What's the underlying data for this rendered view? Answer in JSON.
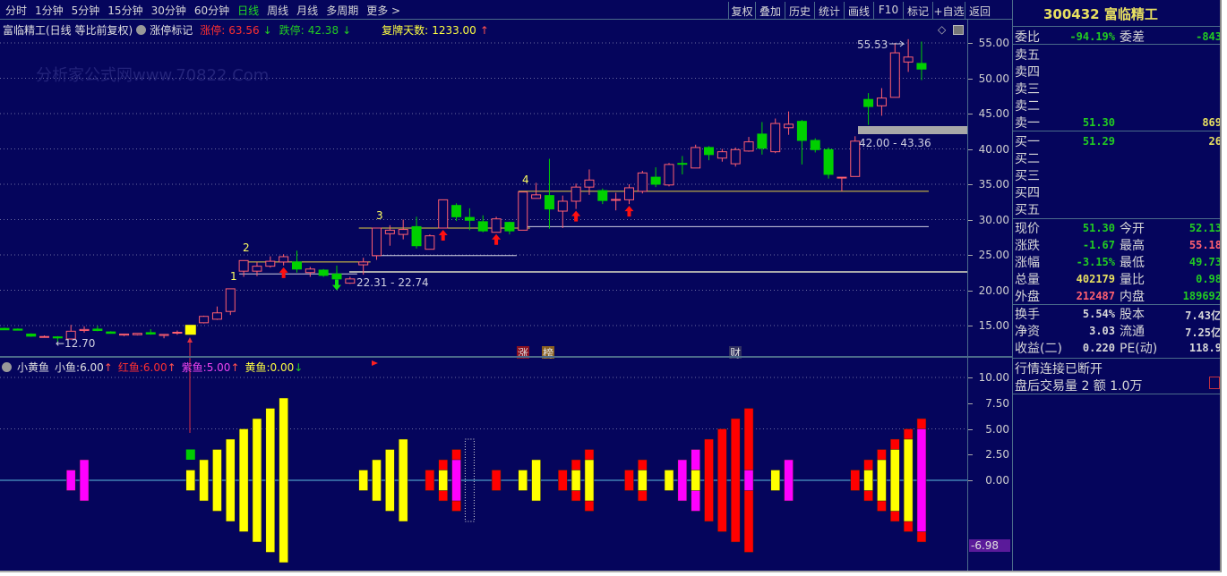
{
  "toolbar": {
    "periods": [
      "分时",
      "1分钟",
      "5分钟",
      "15分钟",
      "30分钟",
      "60分钟",
      "日线",
      "周线",
      "月线",
      "多周期",
      "更多 >"
    ],
    "active_period": "日线",
    "actions": [
      "复权",
      "叠加",
      "历史",
      "统计",
      "画线",
      "F10",
      "标记",
      "+自选",
      "返回"
    ]
  },
  "price_header": {
    "title": "富临精工(日线 等比前复权)",
    "mark_label": "涨停标记",
    "limit_up_label": "涨停:",
    "limit_up": "63.56",
    "limit_down_label": "跌停:",
    "limit_down": "42.38",
    "resume_label": "复牌天数:",
    "resume_days": "1233.00"
  },
  "indicator_header": {
    "name": "小黄鱼",
    "small_label": "小鱼:",
    "small": "6.00",
    "red_label": "红鱼:",
    "red": "6.00",
    "purple_label": "紫鱼:",
    "purple": "5.00",
    "yellow_label": "黄鱼:",
    "yellow": "0.00"
  },
  "price_axis": [
    "55.00",
    "50.00",
    "45.00",
    "40.00",
    "35.00",
    "30.00",
    "25.00",
    "20.00",
    "15.00"
  ],
  "indicator_axis": [
    "10.00",
    "7.50",
    "5.00",
    "2.50",
    "0.00"
  ],
  "indicator_cursor_value": "-6.98",
  "annotations": {
    "low_label": "←12.70",
    "zone1": "22.31 - 22.74",
    "zone2": "42.00 - 43.36",
    "high_label": "55.53",
    "wave_labels": [
      "1",
      "2",
      "3",
      "4"
    ],
    "badges": [
      "涨",
      "榜",
      "财"
    ]
  },
  "watermark": "分析家公式网www.70822.Com",
  "colors": {
    "bg": "#05055c",
    "up": "#ff5f6f",
    "down": "#00d000",
    "yellow": "#ffff00",
    "red": "#ff0000",
    "magenta": "#ff00ff",
    "green": "#00cc00",
    "grid": "#4b6b8a"
  },
  "chart_data": {
    "type": "candlestick",
    "ylim": [
      12,
      56
    ],
    "highlight_index": 14,
    "ohlc": [
      [
        14.6,
        14.7,
        14.4,
        14.4
      ],
      [
        14.5,
        14.6,
        14.3,
        14.35
      ],
      [
        13.8,
        13.9,
        13.4,
        13.5
      ],
      [
        13.4,
        13.6,
        13.3,
        13.45
      ],
      [
        13.4,
        13.5,
        12.7,
        13.25
      ],
      [
        13.1,
        15.1,
        13.0,
        14.2
      ],
      [
        14.3,
        14.9,
        14.0,
        14.45
      ],
      [
        14.5,
        15.0,
        14.2,
        14.3
      ],
      [
        14.1,
        14.2,
        13.9,
        13.9
      ],
      [
        13.65,
        13.8,
        13.5,
        13.8
      ],
      [
        13.7,
        13.9,
        13.6,
        13.9
      ],
      [
        14.0,
        14.5,
        13.7,
        13.8
      ],
      [
        13.6,
        13.8,
        13.2,
        13.75
      ],
      [
        13.95,
        14.3,
        13.7,
        14.05
      ],
      [
        13.7,
        15.1,
        13.7,
        15.1
      ],
      [
        15.4,
        16.4,
        15.3,
        16.3
      ],
      [
        15.9,
        17.7,
        15.8,
        16.8
      ],
      [
        17.0,
        20.2,
        16.5,
        20.2
      ],
      [
        22.7,
        24.2,
        21.9,
        24.2
      ],
      [
        22.7,
        24.0,
        22.0,
        23.4
      ],
      [
        23.4,
        24.8,
        23.2,
        24.1
      ],
      [
        24.0,
        25.1,
        23.5,
        24.75
      ],
      [
        24.0,
        25.6,
        22.5,
        23.0
      ],
      [
        22.5,
        23.3,
        21.9,
        23.0
      ],
      [
        22.85,
        23.0,
        21.9,
        22.1
      ],
      [
        22.3,
        23.5,
        21.5,
        21.6
      ],
      [
        21.0,
        21.9,
        20.9,
        21.6
      ],
      [
        23.6,
        24.6,
        22.2,
        24.0
      ],
      [
        24.9,
        28.8,
        24.3,
        28.8
      ],
      [
        28.0,
        29.2,
        26.3,
        28.5
      ],
      [
        27.9,
        30.0,
        27.2,
        28.6
      ],
      [
        29.0,
        30.4,
        25.9,
        26.3
      ],
      [
        25.8,
        27.9,
        25.8,
        27.7
      ],
      [
        28.8,
        32.8,
        28.8,
        32.8
      ],
      [
        32.0,
        32.3,
        29.8,
        30.4
      ],
      [
        30.3,
        31.6,
        28.5,
        29.9
      ],
      [
        29.7,
        30.6,
        28.2,
        28.4
      ],
      [
        28.2,
        30.4,
        28.2,
        30.1
      ],
      [
        29.6,
        29.7,
        27.9,
        28.4
      ],
      [
        28.5,
        33.9,
        28.5,
        33.9
      ],
      [
        33.0,
        35.2,
        33.0,
        33.5
      ],
      [
        33.4,
        38.6,
        28.7,
        31.5
      ],
      [
        31.2,
        33.4,
        28.8,
        32.6
      ],
      [
        32.6,
        35.1,
        31.5,
        34.6
      ],
      [
        34.6,
        37.1,
        33.5,
        35.6
      ],
      [
        34.1,
        34.4,
        32.2,
        32.7
      ],
      [
        32.75,
        33.8,
        31.3,
        32.85
      ],
      [
        32.8,
        35.0,
        32.2,
        34.5
      ],
      [
        34.0,
        36.9,
        33.7,
        36.6
      ],
      [
        36.0,
        37.4,
        34.6,
        35.0
      ],
      [
        34.9,
        38.0,
        34.7,
        37.8
      ],
      [
        37.95,
        39.0,
        36.4,
        37.85
      ],
      [
        37.3,
        40.6,
        37.3,
        40.2
      ],
      [
        40.2,
        40.4,
        38.4,
        39.2
      ],
      [
        38.7,
        40.0,
        38.2,
        39.6
      ],
      [
        37.9,
        40.2,
        37.5,
        39.9
      ],
      [
        39.7,
        41.7,
        39.6,
        41.0
      ],
      [
        42.1,
        43.8,
        39.2,
        40.1
      ],
      [
        39.6,
        44.3,
        39.4,
        43.6
      ],
      [
        43.0,
        45.3,
        42.0,
        43.5
      ],
      [
        43.9,
        44.1,
        37.8,
        41.2
      ],
      [
        41.2,
        41.5,
        39.5,
        39.9
      ],
      [
        39.9,
        40.2,
        35.8,
        36.4
      ],
      [
        35.9,
        36.0,
        34.0,
        36.0
      ],
      [
        36.1,
        41.8,
        36.1,
        41.1
      ],
      [
        47.0,
        47.9,
        43.4,
        46.0
      ],
      [
        46.1,
        48.6,
        44.7,
        47.2
      ],
      [
        47.3,
        55.0,
        47.3,
        53.6
      ],
      [
        52.3,
        55.53,
        50.9,
        53.0
      ],
      [
        52.1,
        55.2,
        49.73,
        51.3
      ]
    ],
    "up_arrows": [
      21,
      33,
      37,
      43,
      47
    ],
    "down_arrows": [
      25
    ],
    "levels": [
      {
        "price": 24.0,
        "from": 18,
        "to": 27,
        "color": "yellow"
      },
      {
        "price": 22.31,
        "from": 18,
        "to": 26,
        "color": "white"
      },
      {
        "price": 28.8,
        "from": 27,
        "to": 39,
        "color": "yellow"
      },
      {
        "price": 24.9,
        "from": 28,
        "to": 38,
        "color": "white"
      },
      {
        "price": 34.0,
        "from": 39,
        "to": 69,
        "color": "yellow"
      },
      {
        "price": 29.0,
        "from": 39,
        "to": 69,
        "color": "white"
      }
    ],
    "indicator": {
      "ylim": [
        -8,
        11
      ],
      "bars": [
        {
          "i": 5,
          "segs": [
            [
              "magenta",
              1
            ]
          ]
        },
        {
          "i": 6,
          "segs": [
            [
              "magenta",
              2
            ]
          ]
        },
        {
          "i": 14,
          "segs": [
            [
              "yellow",
              1
            ]
          ],
          "top": [
            "green",
            2,
            3
          ]
        },
        {
          "i": 15,
          "segs": [
            [
              "yellow",
              2
            ]
          ]
        },
        {
          "i": 16,
          "segs": [
            [
              "yellow",
              3
            ]
          ]
        },
        {
          "i": 17,
          "segs": [
            [
              "yellow",
              4
            ]
          ]
        },
        {
          "i": 18,
          "segs": [
            [
              "yellow",
              5
            ]
          ]
        },
        {
          "i": 19,
          "segs": [
            [
              "yellow",
              6
            ]
          ]
        },
        {
          "i": 20,
          "segs": [
            [
              "yellow",
              7
            ]
          ]
        },
        {
          "i": 21,
          "segs": [
            [
              "yellow",
              8
            ]
          ]
        },
        {
          "i": 27,
          "segs": [
            [
              "yellow",
              1
            ]
          ]
        },
        {
          "i": 28,
          "segs": [
            [
              "yellow",
              2
            ]
          ]
        },
        {
          "i": 29,
          "segs": [
            [
              "yellow",
              3
            ]
          ]
        },
        {
          "i": 30,
          "segs": [
            [
              "yellow",
              4
            ]
          ]
        },
        {
          "i": 32,
          "segs": [
            [
              "red",
              1
            ]
          ]
        },
        {
          "i": 33,
          "segs": [
            [
              "red",
              2
            ],
            [
              "yellow",
              1
            ]
          ]
        },
        {
          "i": 34,
          "segs": [
            [
              "red",
              3
            ],
            [
              "magenta",
              2
            ]
          ]
        },
        {
          "i": 35,
          "segs": [
            [
              "outline",
              4
            ]
          ]
        },
        {
          "i": 37,
          "segs": [
            [
              "red",
              1
            ]
          ]
        },
        {
          "i": 39,
          "segs": [
            [
              "yellow",
              1
            ]
          ]
        },
        {
          "i": 40,
          "segs": [
            [
              "yellow",
              2
            ]
          ]
        },
        {
          "i": 42,
          "segs": [
            [
              "red",
              1
            ]
          ]
        },
        {
          "i": 43,
          "segs": [
            [
              "red",
              2
            ],
            [
              "yellow",
              1
            ]
          ]
        },
        {
          "i": 44,
          "segs": [
            [
              "red",
              3
            ],
            [
              "yellow",
              2
            ]
          ]
        },
        {
          "i": 47,
          "segs": [
            [
              "red",
              1
            ]
          ]
        },
        {
          "i": 48,
          "segs": [
            [
              "red",
              2
            ],
            [
              "yellow",
              1
            ]
          ]
        },
        {
          "i": 50,
          "segs": [
            [
              "yellow",
              1
            ]
          ]
        },
        {
          "i": 51,
          "segs": [
            [
              "magenta",
              2
            ]
          ]
        },
        {
          "i": 52,
          "segs": [
            [
              "magenta",
              3
            ],
            [
              "yellow",
              1
            ]
          ]
        },
        {
          "i": 53,
          "segs": [
            [
              "red",
              4
            ]
          ]
        },
        {
          "i": 54,
          "segs": [
            [
              "red",
              5
            ]
          ]
        },
        {
          "i": 55,
          "segs": [
            [
              "red",
              6
            ]
          ]
        },
        {
          "i": 56,
          "segs": [
            [
              "red",
              7
            ],
            [
              "magenta",
              1
            ]
          ]
        },
        {
          "i": 58,
          "segs": [
            [
              "yellow",
              1
            ]
          ]
        },
        {
          "i": 59,
          "segs": [
            [
              "magenta",
              2
            ]
          ]
        },
        {
          "i": 64,
          "segs": [
            [
              "red",
              1
            ]
          ]
        },
        {
          "i": 65,
          "segs": [
            [
              "red",
              2
            ],
            [
              "yellow",
              1
            ]
          ]
        },
        {
          "i": 66,
          "segs": [
            [
              "red",
              3
            ],
            [
              "yellow",
              2
            ]
          ]
        },
        {
          "i": 67,
          "segs": [
            [
              "red",
              4
            ],
            [
              "yellow",
              3
            ]
          ]
        },
        {
          "i": 68,
          "segs": [
            [
              "red",
              5
            ],
            [
              "yellow",
              4
            ]
          ]
        },
        {
          "i": 69,
          "segs": [
            [
              "red",
              6
            ],
            [
              "magenta",
              5
            ]
          ]
        }
      ]
    }
  },
  "quote": {
    "code_name": "300432 富临精工",
    "wei_bi_label": "委比",
    "wei_bi": "-94.19%",
    "wei_cha_label": "委差",
    "wei_cha": "-843",
    "asks": [
      {
        "label": "卖五",
        "price": "",
        "vol": ""
      },
      {
        "label": "卖四",
        "price": "",
        "vol": ""
      },
      {
        "label": "卖三",
        "price": "",
        "vol": ""
      },
      {
        "label": "卖二",
        "price": "",
        "vol": ""
      },
      {
        "label": "卖一",
        "price": "51.30",
        "vol": "869"
      }
    ],
    "bids": [
      {
        "label": "买一",
        "price": "51.29",
        "vol": "26"
      },
      {
        "label": "买二",
        "price": "",
        "vol": ""
      },
      {
        "label": "买三",
        "price": "",
        "vol": ""
      },
      {
        "label": "买四",
        "price": "",
        "vol": ""
      },
      {
        "label": "买五",
        "price": "",
        "vol": ""
      }
    ],
    "stats": [
      [
        "现价",
        "51.30",
        "今开",
        "52.13"
      ],
      [
        "涨跌",
        "-1.67",
        "最高",
        "55.18"
      ],
      [
        "涨幅",
        "-3.15%",
        "最低",
        "49.73"
      ],
      [
        "总量",
        "402179",
        "量比",
        "0.98"
      ],
      [
        "外盘",
        "212487",
        "内盘",
        "189692"
      ]
    ],
    "stats_colors": [
      [
        "#22cc22",
        "#22cc22"
      ],
      [
        "#22cc22",
        "#ff6070"
      ],
      [
        "#22cc22",
        "#22cc22"
      ],
      [
        "#e8e060",
        "#22cc22"
      ],
      [
        "#ff6070",
        "#22cc22"
      ]
    ],
    "fund": [
      [
        "换手",
        "5.54%",
        "股本",
        "7.43亿"
      ],
      [
        "净资",
        "3.03",
        "流通",
        "7.25亿"
      ],
      [
        "收益(二)",
        "0.220",
        "PE(动)",
        "118.9"
      ]
    ],
    "status": "行情连接已断开",
    "after_hours": "盘后交易量 2 额 1.0万"
  }
}
